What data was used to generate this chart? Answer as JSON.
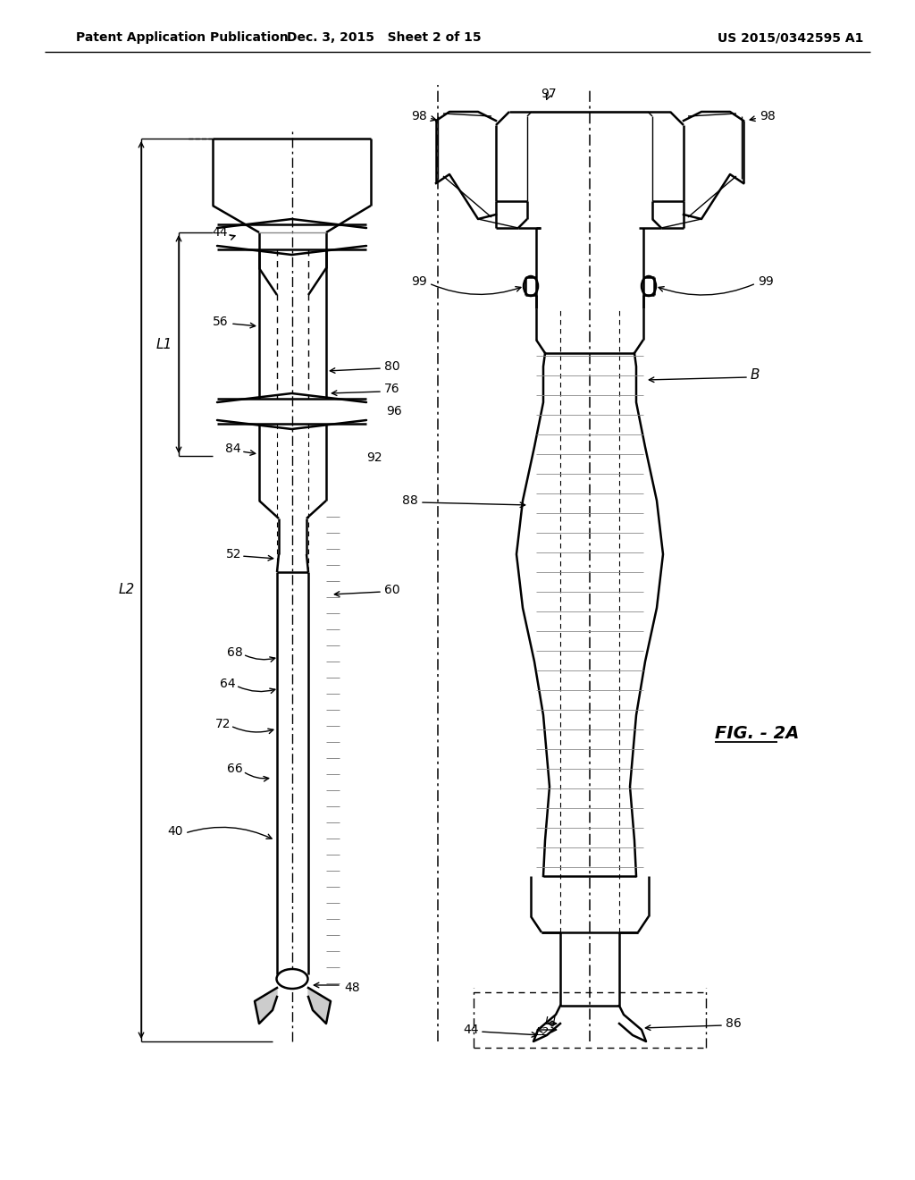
{
  "bg_color": "#ffffff",
  "header_left": "Patent Application Publication",
  "header_mid": "Dec. 3, 2015   Sheet 2 of 15",
  "header_right": "US 2015/0342595 A1",
  "fig_label": "FIG. - 2A",
  "figsize": [
    10.24,
    13.2
  ],
  "dpi": 100
}
